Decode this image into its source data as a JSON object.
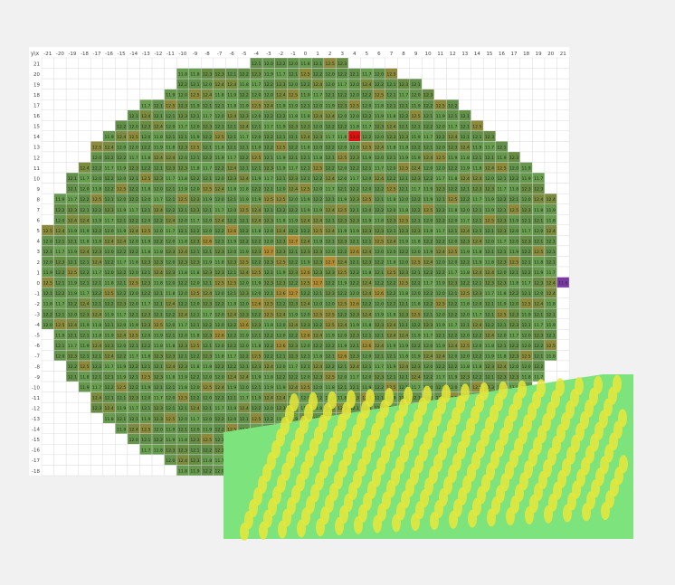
{
  "chart_data": {
    "type": "heatmap",
    "title": "",
    "corner_label": "y\\x",
    "xlabel": "",
    "ylabel": "",
    "x": [
      -21,
      -20,
      -19,
      -18,
      -17,
      -16,
      -15,
      -14,
      -13,
      -12,
      -11,
      -10,
      -9,
      -8,
      -7,
      -6,
      -5,
      -4,
      -3,
      -2,
      -1,
      0,
      1,
      2,
      3,
      4,
      5,
      6,
      7,
      8,
      9,
      10,
      11,
      12,
      13,
      14,
      15,
      16,
      17,
      18,
      19,
      20,
      21
    ],
    "y": [
      21,
      20,
      19,
      18,
      17,
      16,
      15,
      14,
      13,
      12,
      11,
      10,
      9,
      8,
      7,
      6,
      5,
      4,
      3,
      2,
      1,
      0,
      -1,
      -2,
      -3,
      -4,
      -5,
      -6,
      -7,
      -8,
      -9,
      -10,
      -11,
      -12,
      -13,
      -14,
      -15,
      -16,
      -17,
      -18
    ],
    "value_range": [
      11.6,
      13.0
    ],
    "row_extents": [
      [
        -4,
        3
      ],
      [
        -10,
        7
      ],
      [
        -10,
        9
      ],
      [
        -11,
        10
      ],
      [
        -13,
        12
      ],
      [
        -14,
        13
      ],
      [
        -15,
        14
      ],
      [
        -16,
        15
      ],
      [
        -17,
        16
      ],
      [
        -17,
        17
      ],
      [
        -18,
        18
      ],
      [
        -19,
        19
      ],
      [
        -19,
        19
      ],
      [
        -20,
        20
      ],
      [
        -20,
        20
      ],
      [
        -20,
        20
      ],
      [
        -21,
        20
      ],
      [
        -21,
        20
      ],
      [
        -21,
        20
      ],
      [
        -21,
        20
      ],
      [
        -21,
        20
      ],
      [
        -21,
        21
      ],
      [
        -21,
        20
      ],
      [
        -21,
        20
      ],
      [
        -21,
        20
      ],
      [
        -21,
        20
      ],
      [
        -20,
        20
      ],
      [
        -20,
        20
      ],
      [
        -20,
        20
      ],
      [
        -19,
        19
      ],
      [
        -19,
        19
      ],
      [
        -18,
        18
      ],
      [
        -17,
        17
      ],
      [
        -17,
        16
      ],
      [
        -16,
        15
      ],
      [
        -15,
        14
      ],
      [
        -14,
        13
      ],
      [
        -13,
        12
      ],
      [
        -11,
        10
      ],
      [
        -10,
        9
      ]
    ],
    "highlight_cells": [
      {
        "x": 4,
        "y": 14,
        "value": 13.0
      },
      {
        "x": 21,
        "y": 0,
        "value": 11.6
      }
    ],
    "legend": "none",
    "grid": true
  },
  "preview_3d": {
    "description_type": "surface-preview",
    "colors": {
      "base": "#7de37d",
      "peak": "#e8e83a"
    }
  },
  "colors": {
    "low": "#6a9f52",
    "mid": "#5f8e49",
    "high": "#c38a2c",
    "max": "#e01010",
    "min": "#7a3aa6",
    "grid": "#d9d9d9",
    "background": "#f1f1f1"
  }
}
